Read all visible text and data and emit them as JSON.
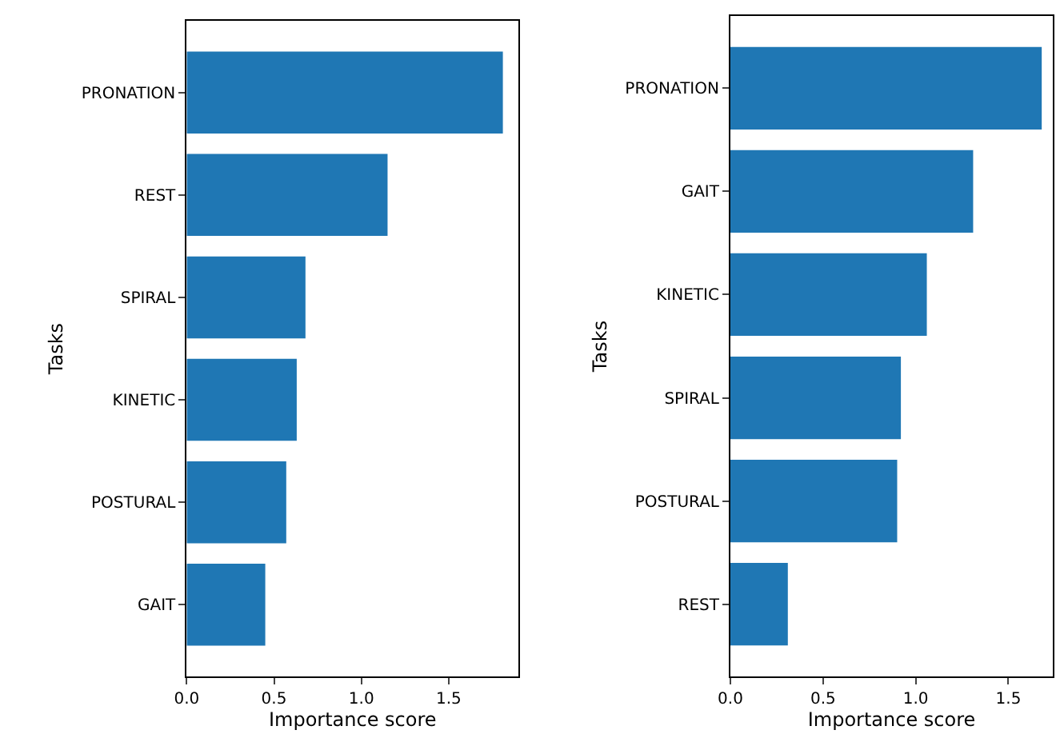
{
  "chart_data": [
    {
      "type": "bar",
      "orientation": "horizontal",
      "categories": [
        "PRONATION",
        "REST",
        "SPIRAL",
        "KINETIC",
        "POSTURAL",
        "GAIT"
      ],
      "values": [
        1.81,
        1.15,
        0.68,
        0.63,
        0.57,
        0.45
      ],
      "color": "#1f77b4",
      "xlabel": "Importance score",
      "ylabel": "Tasks",
      "xlim": [
        0,
        1.9
      ],
      "xticks": [
        {
          "value": 0,
          "label": "0.0"
        },
        {
          "value": 0.5,
          "label": "0.5"
        },
        {
          "value": 1,
          "label": "1.0"
        },
        {
          "value": 1.5,
          "label": "1.5"
        }
      ],
      "legend": false
    },
    {
      "type": "bar",
      "orientation": "horizontal",
      "categories": [
        "PRONATION",
        "GAIT",
        "KINETIC",
        "SPIRAL",
        "POSTURAL",
        "REST"
      ],
      "values": [
        1.68,
        1.31,
        1.06,
        0.92,
        0.9,
        0.31
      ],
      "color": "#1f77b4",
      "xlabel": "Importance score",
      "ylabel": "Tasks",
      "xlim": [
        0,
        1.74
      ],
      "xticks": [
        {
          "value": 0,
          "label": "0.0"
        },
        {
          "value": 0.5,
          "label": "0.5"
        },
        {
          "value": 1,
          "label": "1.0"
        },
        {
          "value": 1.5,
          "label": "1.5"
        }
      ],
      "legend": false
    }
  ]
}
